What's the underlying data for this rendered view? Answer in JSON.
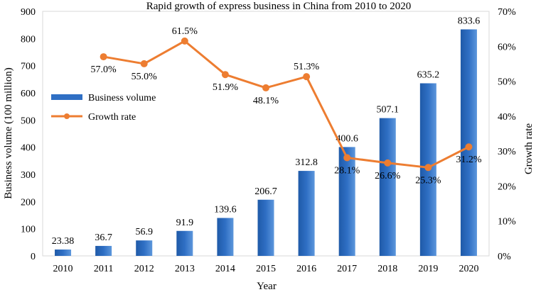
{
  "chart_data": {
    "type": "bar+line",
    "title": "Rapid growth of express business in China from  2010  to 2020",
    "xlabel": "Year",
    "ylabel": "Business volume (100 million)",
    "ylabel_right": "Growth rate",
    "categories": [
      "2010",
      "2011",
      "2012",
      "2013",
      "2014",
      "2015",
      "2016",
      "2017",
      "2018",
      "2019",
      "2020"
    ],
    "ylim": [
      0,
      900
    ],
    "y_ticks": [
      "0",
      "100",
      "200",
      "300",
      "400",
      "500",
      "600",
      "700",
      "800",
      "900"
    ],
    "ylim_right": [
      0,
      70
    ],
    "y_ticks_right": [
      "0%",
      "10%",
      "20%",
      "30%",
      "40%",
      "50%",
      "60%",
      "70%"
    ],
    "grid": false,
    "legend_position": "middle-left",
    "series": [
      {
        "name": "Business volume",
        "kind": "bar",
        "axis": "left",
        "color": "#2f6fc4",
        "values": [
          23.38,
          36.7,
          56.9,
          91.9,
          139.6,
          206.7,
          312.8,
          400.6,
          507.1,
          635.2,
          833.6
        ],
        "labels": [
          "23.38",
          "36.7",
          "56.9",
          "91.9",
          "139.6",
          "206.7",
          "312.8",
          "400.6",
          "507.1",
          "635.2",
          "833.6"
        ]
      },
      {
        "name": "Growth rate",
        "kind": "line",
        "axis": "right",
        "color": "#ed7d31",
        "values": [
          null,
          57.0,
          55.0,
          61.5,
          51.9,
          48.1,
          51.3,
          28.1,
          26.6,
          25.3,
          31.2
        ],
        "labels": [
          "",
          "57.0%",
          "55.0%",
          "61.5%",
          "51.9%",
          "48.1%",
          "51.3%",
          "28.1%",
          "26.6%",
          "25.3%",
          "31.2%"
        ]
      }
    ]
  }
}
